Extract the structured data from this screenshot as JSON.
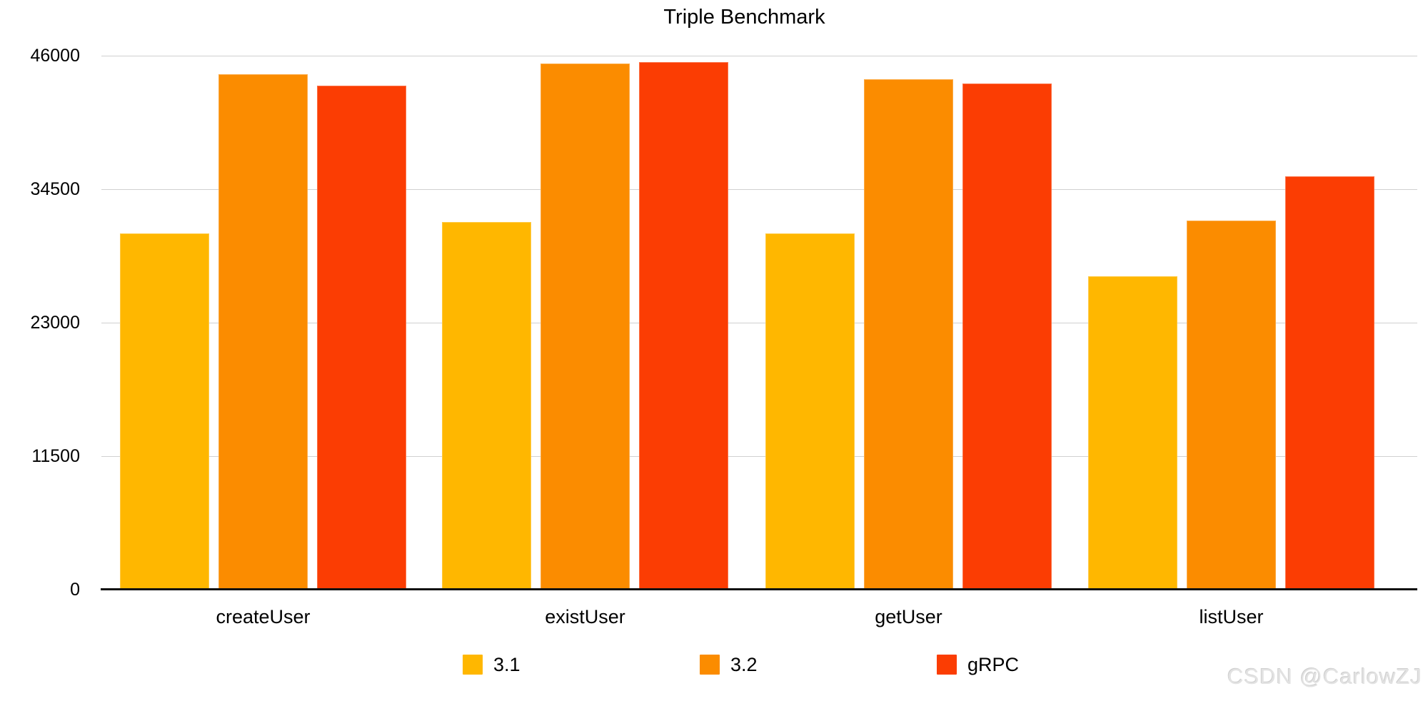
{
  "watermark": "CSDN @CarlowZJ",
  "chart_data": {
    "type": "bar",
    "title": "Triple Benchmark",
    "categories": [
      "createUser",
      "existUser",
      "getUser",
      "listUser"
    ],
    "series": [
      {
        "name": "3.1",
        "color": "#FFB700",
        "values": [
          30700,
          31650,
          30700,
          27000
        ]
      },
      {
        "name": "3.2",
        "color": "#FB8C00",
        "values": [
          44400,
          45300,
          44000,
          31800
        ]
      },
      {
        "name": "gRPC",
        "color": "#FB3D03",
        "values": [
          43400,
          45450,
          43600,
          35600
        ]
      }
    ],
    "xlabel": "",
    "ylabel": "",
    "ylim": [
      0,
      46000
    ],
    "yticks": [
      0,
      11500,
      23000,
      34500,
      46000
    ],
    "grid": "horizontal",
    "legend_position": "bottom"
  }
}
